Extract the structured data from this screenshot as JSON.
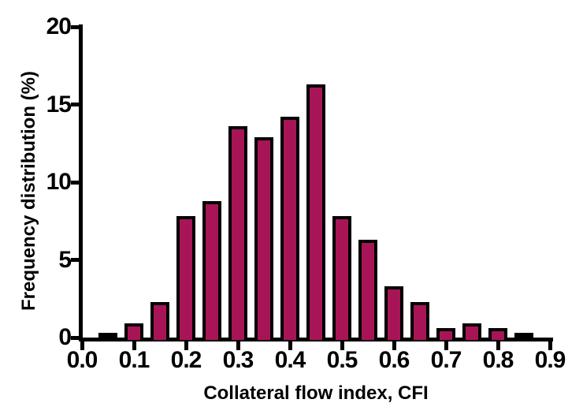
{
  "figure": {
    "background_color": "#ffffff",
    "text_color": "#000000"
  },
  "chart_data": {
    "type": "bar",
    "subtype": "histogram",
    "title": "",
    "xlabel": "Collateral flow index, CFI",
    "ylabel": "Frequency distribution (%)",
    "bin_width": 0.05,
    "bar_centers": [
      0.05,
      0.1,
      0.15,
      0.2,
      0.25,
      0.3,
      0.35,
      0.4,
      0.45,
      0.5,
      0.55,
      0.6,
      0.65,
      0.7,
      0.75,
      0.8,
      0.85
    ],
    "values": [
      0.3,
      0.9,
      2.3,
      7.8,
      8.8,
      13.6,
      12.9,
      14.2,
      16.3,
      7.8,
      6.3,
      3.3,
      2.3,
      0.6,
      0.9,
      0.6,
      0.3
    ],
    "bar_fills": [
      "#000000",
      "#a81557",
      "#a81557",
      "#a81557",
      "#a81557",
      "#a81557",
      "#a81557",
      "#a81557",
      "#a81557",
      "#a81557",
      "#a81557",
      "#a81557",
      "#a81557",
      "#a81557",
      "#a81557",
      "#a81557",
      "#000000"
    ],
    "bar_edge_color": "#000000",
    "axis_color": "#000000",
    "x_tick_labels": [
      "0.0",
      "0.1",
      "0.2",
      "0.3",
      "0.4",
      "0.5",
      "0.6",
      "0.7",
      "0.8",
      "0.9"
    ],
    "x_tick_values": [
      0.0,
      0.1,
      0.2,
      0.3,
      0.4,
      0.5,
      0.6,
      0.7,
      0.8,
      0.9
    ],
    "y_tick_labels": [
      "0",
      "5",
      "10",
      "15",
      "20"
    ],
    "y_tick_values": [
      0,
      5,
      10,
      15,
      20
    ],
    "xlim": [
      0.0,
      0.9
    ],
    "ylim": [
      0,
      20
    ],
    "grid": false,
    "legend": null
  }
}
